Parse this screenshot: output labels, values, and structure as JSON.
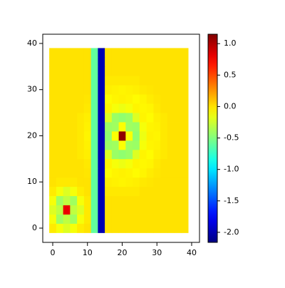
{
  "chart_data": {
    "type": "heatmap",
    "colormap": "jet",
    "x": [
      0,
      2,
      4,
      6,
      8,
      10,
      12,
      14,
      16,
      18,
      20,
      22,
      24,
      26,
      28,
      30,
      32,
      34,
      36,
      38
    ],
    "y": [
      0,
      2,
      4,
      6,
      8,
      10,
      12,
      14,
      16,
      18,
      20,
      22,
      24,
      26,
      28,
      30,
      32,
      34,
      36,
      38
    ],
    "z": [
      [
        -0.03,
        -0.12,
        -0.2,
        -0.12,
        -0.03,
        0,
        -0.6,
        -2,
        0,
        0,
        0,
        0,
        0,
        0,
        0,
        0,
        0,
        0,
        0,
        0
      ],
      [
        -0.12,
        -0.4,
        -0.3,
        -0.4,
        -0.12,
        -0.02,
        -0.6,
        -2,
        0,
        0,
        0,
        0,
        0,
        0,
        0,
        0,
        0,
        0,
        0,
        0
      ],
      [
        -0.2,
        -0.3,
        0.8,
        -0.3,
        -0.2,
        -0.02,
        -0.6,
        -2,
        0,
        0,
        0,
        0,
        0,
        0,
        0,
        0,
        0,
        0,
        0,
        0
      ],
      [
        -0.12,
        -0.4,
        -0.3,
        -0.4,
        -0.12,
        -0.02,
        -0.6,
        -2,
        0,
        0,
        0,
        0,
        0,
        0,
        0,
        0,
        0,
        0,
        0,
        0
      ],
      [
        -0.03,
        -0.12,
        -0.2,
        -0.12,
        -0.03,
        0,
        -0.6,
        -2,
        -0.02,
        -0.02,
        -0.02,
        -0.02,
        -0.02,
        0,
        0,
        0,
        0,
        0,
        0,
        0
      ],
      [
        0,
        -0.02,
        -0.02,
        -0.02,
        0,
        0,
        -0.6,
        -2,
        -0.04,
        -0.05,
        -0.06,
        -0.05,
        -0.04,
        -0.02,
        -0.01,
        0,
        0,
        0,
        0,
        0
      ],
      [
        0,
        0,
        0,
        0,
        0,
        -0.01,
        -0.6,
        -2,
        -0.08,
        -0.06,
        -0.05,
        -0.06,
        -0.08,
        -0.06,
        -0.03,
        -0.01,
        0,
        0,
        0,
        0
      ],
      [
        0,
        0,
        0,
        0,
        0,
        -0.02,
        -0.6,
        -2,
        -0.06,
        -0.12,
        -0.15,
        -0.12,
        -0.06,
        -0.07,
        -0.06,
        -0.02,
        0,
        0,
        0,
        0
      ],
      [
        0,
        0,
        0,
        0,
        -0.02,
        -0.04,
        -0.6,
        -2,
        -0.2,
        -0.42,
        -0.45,
        -0.42,
        -0.2,
        -0.06,
        -0.08,
        -0.04,
        -0.02,
        0,
        0,
        0
      ],
      [
        0,
        0,
        0,
        0,
        -0.02,
        -0.05,
        -0.6,
        -2,
        -0.42,
        -0.4,
        -0.1,
        -0.4,
        -0.42,
        -0.12,
        -0.06,
        -0.05,
        -0.02,
        0,
        0,
        0
      ],
      [
        0,
        0,
        0,
        0,
        -0.02,
        -0.06,
        -0.6,
        -2,
        -0.45,
        -0.1,
        1.1,
        -0.1,
        -0.45,
        -0.15,
        -0.05,
        -0.06,
        -0.02,
        0,
        0,
        0
      ],
      [
        0,
        0,
        0,
        0,
        -0.02,
        -0.05,
        -0.6,
        -2,
        -0.42,
        -0.4,
        -0.1,
        -0.4,
        -0.42,
        -0.12,
        -0.06,
        -0.05,
        -0.02,
        0,
        0,
        0
      ],
      [
        0,
        0,
        0,
        0,
        -0.02,
        -0.04,
        -0.6,
        -2,
        -0.2,
        -0.42,
        -0.45,
        -0.42,
        -0.2,
        -0.06,
        -0.08,
        -0.04,
        -0.02,
        0,
        0,
        0
      ],
      [
        0,
        0,
        0,
        0,
        0,
        -0.02,
        -0.6,
        -2,
        -0.06,
        -0.12,
        -0.15,
        -0.12,
        -0.06,
        -0.07,
        -0.06,
        -0.02,
        0,
        0,
        0,
        0
      ],
      [
        0,
        0,
        0,
        0,
        0,
        -0.01,
        -0.6,
        -2,
        -0.08,
        -0.06,
        -0.05,
        -0.06,
        -0.08,
        -0.06,
        -0.03,
        -0.01,
        0,
        0,
        0,
        0
      ],
      [
        0,
        0,
        0,
        0,
        0,
        0,
        -0.6,
        -2,
        -0.04,
        -0.05,
        -0.06,
        -0.05,
        -0.04,
        -0.02,
        -0.01,
        0,
        0,
        0,
        0,
        0
      ],
      [
        0,
        0,
        0,
        0,
        0,
        0,
        -0.6,
        -2,
        -0.02,
        -0.02,
        -0.02,
        -0.02,
        -0.02,
        0,
        0,
        0,
        0,
        0,
        0,
        0
      ],
      [
        0,
        0,
        0,
        0,
        0,
        0,
        -0.6,
        -2,
        0,
        0,
        0,
        0,
        0,
        0,
        0,
        0,
        0,
        0,
        0,
        0
      ],
      [
        0,
        0,
        0,
        0,
        0,
        0,
        -0.6,
        -2,
        0,
        0,
        0,
        0,
        0,
        0,
        0,
        0,
        0,
        0,
        0,
        0
      ],
      [
        0,
        0,
        0,
        0,
        0,
        0,
        -0.6,
        -2,
        0,
        0,
        0,
        0,
        0,
        0,
        0,
        0,
        0,
        0,
        0,
        0
      ]
    ],
    "xlim": [
      -2.87,
      42.26
    ],
    "xticks": [
      0,
      10,
      20,
      30,
      40
    ],
    "ylim": [
      -3.09,
      42.0
    ],
    "yticks": [
      0,
      10,
      20,
      30,
      40
    ],
    "zlim": [
      -2.16,
      1.15
    ],
    "zticks": [
      {
        "value": 1,
        "label": "1.0"
      },
      0.5,
      {
        "value": 0,
        "label": "0.0"
      },
      -0.5,
      {
        "value": -1,
        "label": "-1.0"
      },
      -1.5,
      {
        "value": -2,
        "label": "-2.0"
      }
    ]
  }
}
